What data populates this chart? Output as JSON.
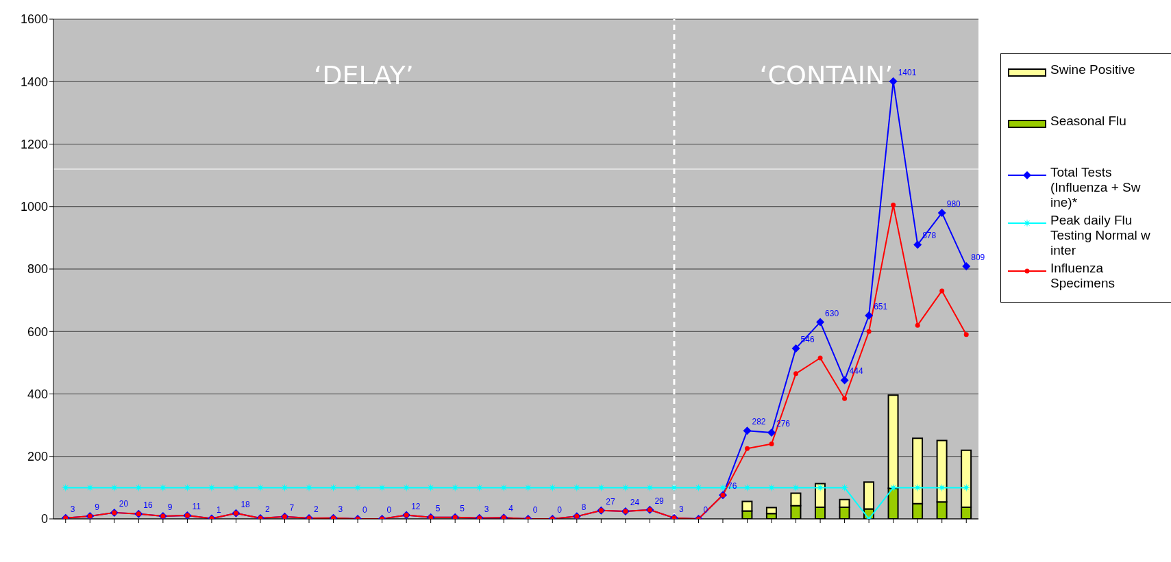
{
  "chart_data": {
    "type": "line",
    "categories": [
      null,
      null,
      null,
      null,
      null,
      null,
      null,
      null,
      null,
      null,
      null,
      null,
      null,
      null,
      null,
      null,
      null,
      null,
      null,
      null,
      null,
      null,
      null,
      null,
      null,
      null,
      null,
      null,
      null,
      null,
      null,
      null,
      null,
      null,
      null,
      null,
      null,
      null
    ],
    "series": [
      {
        "name": "Seasonal Flu",
        "type": "bar",
        "color": "#99cc00",
        "values": [
          null,
          null,
          null,
          null,
          null,
          null,
          null,
          null,
          null,
          null,
          null,
          null,
          null,
          null,
          null,
          null,
          null,
          null,
          null,
          null,
          null,
          null,
          null,
          null,
          null,
          null,
          null,
          null,
          25,
          17,
          42,
          37,
          37,
          32,
          98,
          49,
          54,
          37
        ]
      },
      {
        "name": "Swine Positive",
        "type": "bar",
        "color": "#ffff99",
        "values": [
          null,
          null,
          null,
          null,
          null,
          null,
          null,
          null,
          null,
          null,
          null,
          null,
          null,
          null,
          null,
          null,
          null,
          null,
          null,
          null,
          null,
          null,
          null,
          null,
          null,
          null,
          null,
          null,
          31,
          19,
          40,
          76,
          25,
          86,
          298,
          209,
          197,
          183
        ]
      },
      {
        "name": "Total Tests (Influenza + Sw ine)*",
        "color": "#0000ff",
        "marker": "diamond",
        "values": [
          3,
          9,
          20,
          16,
          9,
          11,
          1,
          18,
          2,
          7,
          2,
          3,
          0,
          0,
          12,
          5,
          5,
          3,
          4,
          0,
          0,
          8,
          27,
          24,
          29,
          3,
          0,
          76,
          282,
          276,
          546,
          630,
          444,
          651,
          1401,
          878,
          980,
          809
        ],
        "value_labels": [
          "3",
          "9",
          "20",
          "16",
          "9",
          "11",
          "1",
          "18",
          "2",
          "7",
          "2",
          "3",
          "0",
          "0",
          "12",
          "5",
          "5",
          "3",
          "4",
          "0",
          "0",
          "8",
          "27",
          "24",
          "29",
          "3",
          "0",
          "76",
          "282",
          "276",
          "546",
          "630",
          "444",
          "651",
          "1401",
          "878",
          "980",
          "809"
        ]
      },
      {
        "name": "Peak daily Flu Testing Normal w inter",
        "color": "#00ffff",
        "marker": "star",
        "values": [
          100,
          100,
          100,
          100,
          100,
          100,
          100,
          100,
          100,
          100,
          100,
          100,
          100,
          100,
          100,
          100,
          100,
          100,
          100,
          100,
          100,
          100,
          100,
          100,
          100,
          100,
          100,
          100,
          100,
          100,
          100,
          100,
          100,
          0,
          100,
          100,
          100,
          100
        ]
      },
      {
        "name": "Influenza Specimens",
        "color": "#ff0000",
        "marker": "circle",
        "values": [
          3,
          9,
          20,
          16,
          9,
          11,
          1,
          18,
          2,
          7,
          2,
          3,
          0,
          0,
          12,
          5,
          5,
          3,
          4,
          0,
          0,
          8,
          27,
          24,
          29,
          3,
          0,
          76,
          225,
          240,
          465,
          515,
          385,
          600,
          1005,
          620,
          730,
          590
        ]
      }
    ],
    "stacked": true,
    "ylim": [
      0,
      1600
    ],
    "yticks": [
      0,
      200,
      400,
      600,
      800,
      1000,
      1200,
      1400,
      1600
    ],
    "grid": "y",
    "legend": "right",
    "annotations": [
      "‘DELAY’",
      "‘CONTAIN’"
    ],
    "ref_lines": [
      {
        "axis": "y",
        "value": 1120,
        "color": "#ffffff"
      }
    ]
  }
}
